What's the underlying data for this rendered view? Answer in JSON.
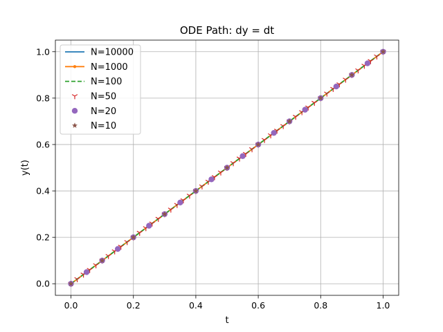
{
  "chart_data": {
    "type": "line",
    "title": "ODE Path: dy = dt",
    "xlabel": "t",
    "ylabel": "y(t)",
    "xlim": [
      -0.05,
      1.05
    ],
    "ylim": [
      -0.05,
      1.05
    ],
    "xticks": [
      0.0,
      0.2,
      0.4,
      0.6,
      0.8,
      1.0
    ],
    "yticks": [
      0.0,
      0.2,
      0.4,
      0.6,
      0.8,
      1.0
    ],
    "xtick_labels": [
      "0.0",
      "0.2",
      "0.4",
      "0.6",
      "0.8",
      "1.0"
    ],
    "ytick_labels": [
      "0.0",
      "0.2",
      "0.4",
      "0.6",
      "0.8",
      "1.0"
    ],
    "grid": true,
    "legend_position": "top-left",
    "series": [
      {
        "name": "N=10000",
        "style": "solid-line",
        "color": "#1f77b4",
        "x": [
          0,
          1
        ],
        "y": [
          0,
          1
        ]
      },
      {
        "name": "N=1000",
        "style": "line-dot-markers",
        "color": "#ff7f0e",
        "x": [
          0,
          1
        ],
        "y": [
          0,
          1
        ]
      },
      {
        "name": "N=100",
        "style": "dashed-line",
        "color": "#2ca02c",
        "x": [
          0,
          1
        ],
        "y": [
          0,
          1
        ]
      },
      {
        "name": "N=50",
        "style": "tri-down-markers",
        "color": "#d62728",
        "x": [
          0.0,
          0.02,
          0.04,
          0.06,
          0.08,
          0.1,
          0.12,
          0.14,
          0.16,
          0.18,
          0.2,
          0.22,
          0.24,
          0.26,
          0.28,
          0.3,
          0.32,
          0.34,
          0.36,
          0.38,
          0.4,
          0.42,
          0.44,
          0.46,
          0.48,
          0.5,
          0.52,
          0.54,
          0.56,
          0.58,
          0.6,
          0.62,
          0.64,
          0.66,
          0.68,
          0.7,
          0.72,
          0.74,
          0.76,
          0.78,
          0.8,
          0.82,
          0.84,
          0.86,
          0.88,
          0.9,
          0.92,
          0.94,
          0.96,
          0.98,
          1.0
        ],
        "y": [
          0.0,
          0.02,
          0.04,
          0.06,
          0.08,
          0.1,
          0.12,
          0.14,
          0.16,
          0.18,
          0.2,
          0.22,
          0.24,
          0.26,
          0.28,
          0.3,
          0.32,
          0.34,
          0.36,
          0.38,
          0.4,
          0.42,
          0.44,
          0.46,
          0.48,
          0.5,
          0.52,
          0.54,
          0.56,
          0.58,
          0.6,
          0.62,
          0.64,
          0.66,
          0.68,
          0.7,
          0.72,
          0.74,
          0.76,
          0.78,
          0.8,
          0.82,
          0.84,
          0.86,
          0.88,
          0.9,
          0.92,
          0.94,
          0.96,
          0.98,
          1.0
        ]
      },
      {
        "name": "N=20",
        "style": "circle-markers",
        "color": "#9467bd",
        "x": [
          0.0,
          0.05,
          0.1,
          0.15,
          0.2,
          0.25,
          0.3,
          0.35,
          0.4,
          0.45,
          0.5,
          0.55,
          0.6,
          0.65,
          0.7,
          0.75,
          0.8,
          0.85,
          0.9,
          0.95,
          1.0
        ],
        "y": [
          0.0,
          0.05,
          0.1,
          0.15,
          0.2,
          0.25,
          0.3,
          0.35,
          0.4,
          0.45,
          0.5,
          0.55,
          0.6,
          0.65,
          0.7,
          0.75,
          0.8,
          0.85,
          0.9,
          0.95,
          1.0
        ]
      },
      {
        "name": "N=10",
        "style": "star-markers",
        "color": "#8c564b",
        "x": [
          0.0,
          0.1,
          0.2,
          0.3,
          0.4,
          0.5,
          0.6,
          0.7,
          0.8,
          0.9,
          1.0
        ],
        "y": [
          0.0,
          0.1,
          0.2,
          0.3,
          0.4,
          0.5,
          0.6,
          0.7,
          0.8,
          0.9,
          1.0
        ]
      }
    ]
  }
}
